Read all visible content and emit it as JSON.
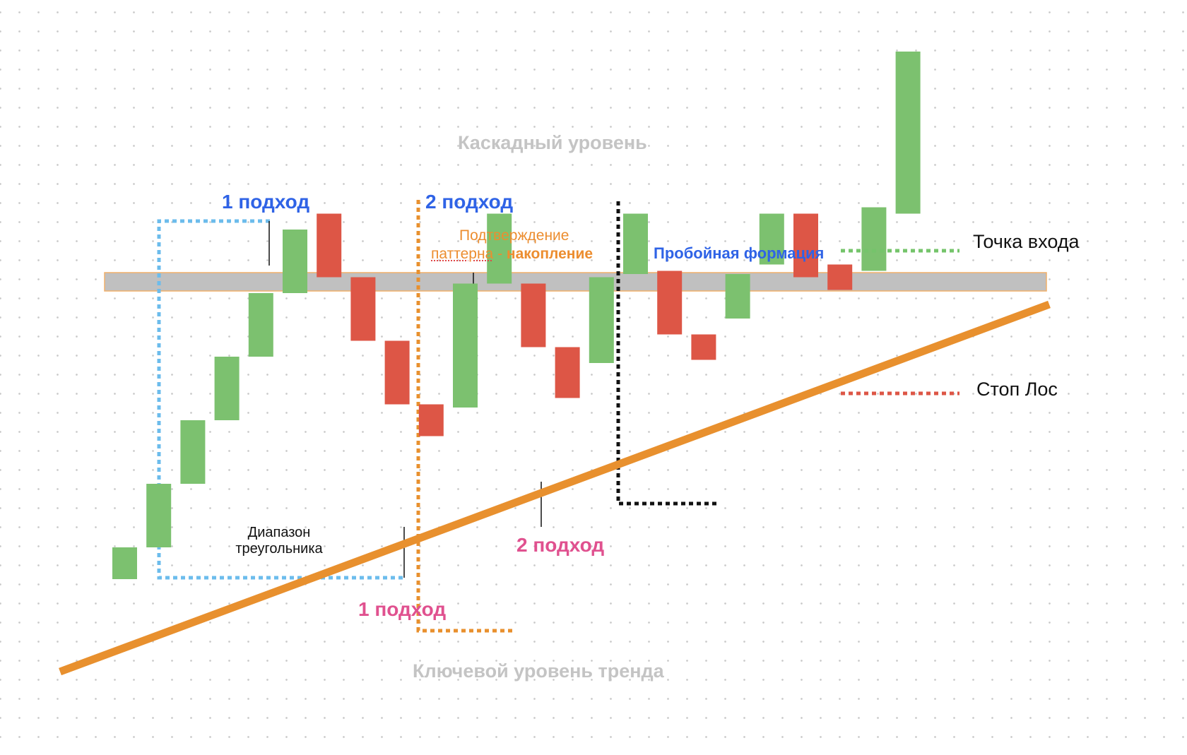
{
  "labels": {
    "cascade_level": "Каскадный уровень",
    "key_trend_level": "Ключевой уровень тренда",
    "approach_top_1": "1 подход",
    "approach_top_2": "2 подход",
    "approach_bottom_1": "1 подход",
    "approach_bottom_2": "2 подход",
    "confirmation_line1": "Подтверждение",
    "confirmation_word": "паттерна",
    "confirmation_dash": " - ",
    "confirmation_strong": "накопление",
    "breakout_formation": "Пробойная формация",
    "entry_point": "Точка входа",
    "stop_loss": "Стоп Лос",
    "range_line1": "Диапазон",
    "range_line2": "треугольника"
  },
  "colors": {
    "bull": "#7cc16f",
    "bear": "#dd5646",
    "trend_line": "#e8902e",
    "resistance_band": "#c0c0c0",
    "approach_blue": "#2f63e6",
    "approach_pink": "#e0518f",
    "range_box": "#6cbcec",
    "entry_marker": "#75c46b",
    "stop_marker": "#dd5646"
  },
  "candles": [
    {
      "dir": "bull",
      "open": 12,
      "close": 22
    },
    {
      "dir": "bull",
      "open": 22,
      "close": 42
    },
    {
      "dir": "bull",
      "open": 42,
      "close": 62
    },
    {
      "dir": "bull",
      "open": 62,
      "close": 82
    },
    {
      "dir": "bull",
      "open": 82,
      "close": 102
    },
    {
      "dir": "bull",
      "open": 102,
      "close": 122
    },
    {
      "dir": "bear",
      "open": 127,
      "close": 107
    },
    {
      "dir": "bear",
      "open": 107,
      "close": 87
    },
    {
      "dir": "bear",
      "open": 87,
      "close": 67
    },
    {
      "dir": "bear",
      "open": 67,
      "close": 57
    },
    {
      "dir": "bull",
      "open": 66,
      "close": 105
    },
    {
      "dir": "bull",
      "open": 105,
      "close": 127
    },
    {
      "dir": "bear",
      "open": 105,
      "close": 85
    },
    {
      "dir": "bear",
      "open": 85,
      "close": 69
    },
    {
      "dir": "bull",
      "open": 80,
      "close": 107
    },
    {
      "dir": "bull",
      "open": 108,
      "close": 127
    },
    {
      "dir": "bear",
      "open": 109,
      "close": 89
    },
    {
      "dir": "bear",
      "open": 89,
      "close": 81
    },
    {
      "dir": "bull",
      "open": 94,
      "close": 108
    },
    {
      "dir": "bull",
      "open": 111,
      "close": 127
    },
    {
      "dir": "bear",
      "open": 127,
      "close": 107
    },
    {
      "dir": "bear",
      "open": 111,
      "close": 103
    },
    {
      "dir": "bull",
      "open": 109,
      "close": 129
    },
    {
      "dir": "bull",
      "open": 127,
      "close": 178
    }
  ]
}
